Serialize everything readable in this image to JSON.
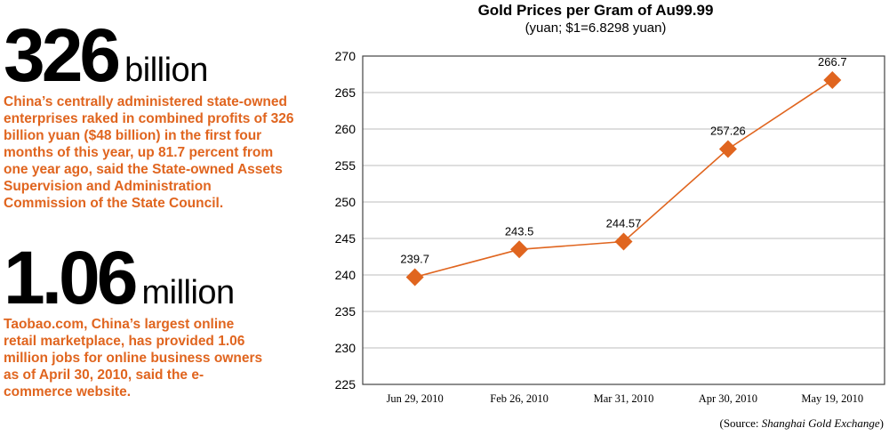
{
  "stats": [
    {
      "number": "326",
      "unit": "billion",
      "text": "China’s centrally administered state-owned enterprises raked in combined profits of 326 billion yuan ($48 billion) in the first four months of this year, up 81.7 percent from one year ago, said the State-owned Assets Supervision and Administration Commission of the State Council."
    },
    {
      "number": "1.06",
      "unit": "million",
      "text": "Taobao.com, China’s largest online retail marketplace, has provided 1.06 million jobs for online business owners as of April 30, 2010, said the e-commerce website."
    }
  ],
  "chart_data": {
    "type": "line",
    "title": "Gold Prices per Gram of Au99.99",
    "subtitle": "(yuan; $1=6.8298 yuan)",
    "categories": [
      "Jun 29, 2010",
      "Feb 26, 2010",
      "Mar 31, 2010",
      "Apr 30, 2010",
      "May 19, 2010"
    ],
    "series": [
      {
        "values": [
          239.7,
          243.5,
          244.57,
          257.26,
          266.7
        ]
      }
    ],
    "data_labels": [
      "239.7",
      "243.5",
      "244.57",
      "257.26",
      "266.7"
    ],
    "ylim": [
      225,
      270
    ],
    "yticks": [
      225,
      230,
      235,
      240,
      245,
      250,
      255,
      260,
      265,
      270
    ],
    "grid": true,
    "marker": "diamond",
    "color": "#e0651f",
    "grid_color": "#bdbdbd"
  },
  "source": {
    "prefix": "(Source: ",
    "name": "Shanghai Gold Exchange",
    "suffix": ")"
  }
}
